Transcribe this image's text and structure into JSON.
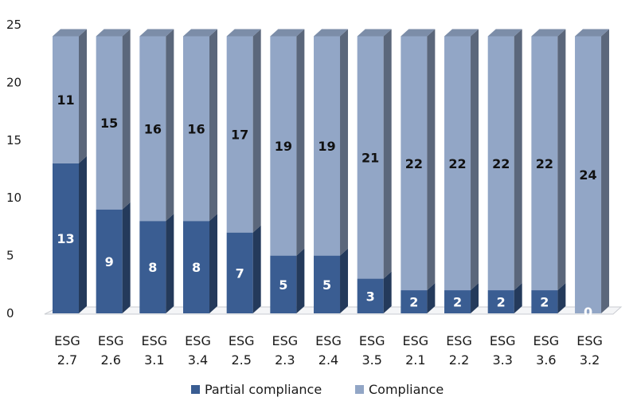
{
  "chart_data": {
    "type": "bar",
    "stacked": true,
    "style": "3d-column",
    "categories": [
      [
        "ESG",
        "2.7"
      ],
      [
        "ESG",
        "2.6"
      ],
      [
        "ESG",
        "3.1"
      ],
      [
        "ESG",
        "3.4"
      ],
      [
        "ESG",
        "2.5"
      ],
      [
        "ESG",
        "2.3"
      ],
      [
        "ESG",
        "2.4"
      ],
      [
        "ESG",
        "3.5"
      ],
      [
        "ESG",
        "2.1"
      ],
      [
        "ESG",
        "2.2"
      ],
      [
        "ESG",
        "3.3"
      ],
      [
        "ESG",
        "3.6"
      ],
      [
        "ESG",
        "3.2"
      ]
    ],
    "series": [
      {
        "name": "Partial compliance",
        "color": "#3a5d92",
        "values": [
          13,
          9,
          8,
          8,
          7,
          5,
          5,
          3,
          2,
          2,
          2,
          2,
          0
        ]
      },
      {
        "name": "Compliance",
        "color": "#92a6c6",
        "values": [
          11,
          15,
          16,
          16,
          17,
          19,
          19,
          21,
          22,
          22,
          22,
          22,
          24
        ]
      }
    ],
    "ylim": [
      0,
      25
    ],
    "yticks": [
      "0",
      "5",
      "10",
      "15",
      "20",
      "25"
    ],
    "legend_position": "bottom",
    "grid": false,
    "title": "",
    "xlabel": "",
    "ylabel": ""
  }
}
